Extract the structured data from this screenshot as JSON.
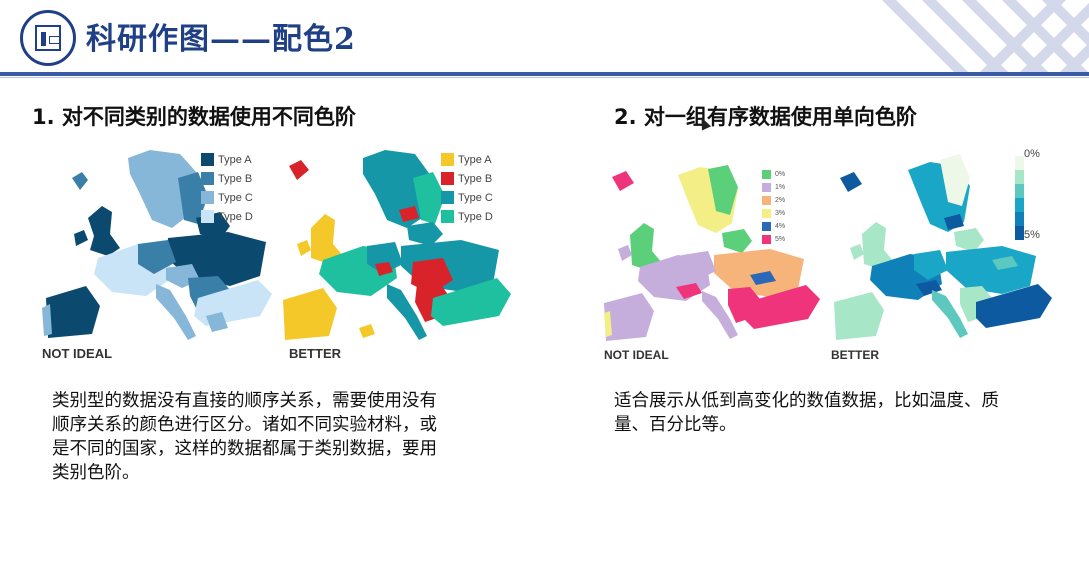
{
  "header": {
    "title": "科研作图——配色2"
  },
  "sections": [
    {
      "title": "1. 对不同类别的数据使用不同色阶",
      "maps": [
        {
          "caption": "NOT IDEAL",
          "legend": [
            {
              "label": "Type A",
              "color": "#0b4a6e"
            },
            {
              "label": "Type B",
              "color": "#3a7fa8"
            },
            {
              "label": "Type C",
              "color": "#86b6d8"
            },
            {
              "label": "Type D",
              "color": "#c8e4f6"
            }
          ]
        },
        {
          "caption": "BETTER",
          "legend": [
            {
              "label": "Type A",
              "color": "#f5c82a"
            },
            {
              "label": "Type B",
              "color": "#d8232a"
            },
            {
              "label": "Type C",
              "color": "#1597a8"
            },
            {
              "label": "Type D",
              "color": "#1fc0a0"
            }
          ]
        }
      ],
      "text": "类别型的数据没有直接的顺序关系，需要使用没有顺序关系的颜色进行区分。诸如不同实验材料，或是不同的国家，这样的数据都属于类别数据，要用类别色阶。"
    },
    {
      "title": "2. 对一组有序数据使用单向色阶",
      "maps": [
        {
          "caption": "NOT IDEAL",
          "legend": [
            {
              "label": "0%",
              "color": "#5ccf7a"
            },
            {
              "label": "1%",
              "color": "#c6aedc"
            },
            {
              "label": "2%",
              "color": "#f6b37a"
            },
            {
              "label": "3%",
              "color": "#f4ee86"
            },
            {
              "label": "4%",
              "color": "#2c68b8"
            },
            {
              "label": "5%",
              "color": "#f0347c"
            }
          ]
        },
        {
          "caption": "BETTER",
          "gradient": {
            "min_label": "0%",
            "max_label": "5%",
            "colors": [
              "#eef8e8",
              "#a8e6c8",
              "#5cc8c0",
              "#1aa6c6",
              "#1080b8",
              "#0d5aa0"
            ]
          }
        }
      ],
      "text": "适合展示从低到高变化的数值数据，比如温度、质量、百分比等。"
    }
  ]
}
